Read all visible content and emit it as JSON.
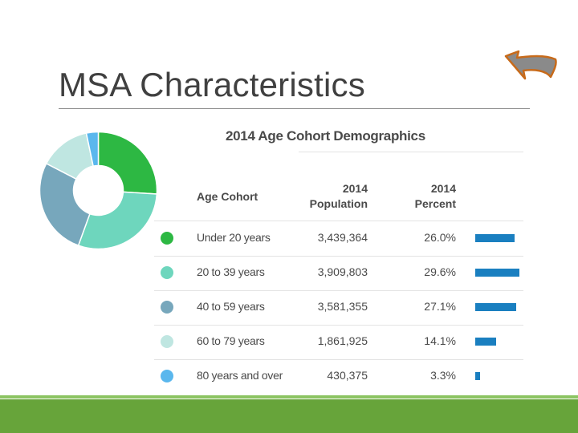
{
  "slide": {
    "title": "MSA Characteristics"
  },
  "colors": {
    "under20": "#2db843",
    "20to39": "#6ed6bd",
    "40to59": "#77a7bc",
    "60to79": "#bfe6e1",
    "80plus": "#5ab7ed",
    "bar": "#1a7fc0"
  },
  "chart_data": {
    "type": "table",
    "title": "2014 Age Cohort Demographics",
    "columns": [
      "Age Cohort",
      "2014 Population",
      "2014 Percent"
    ],
    "column_headers": [
      {
        "line1": "Age Cohort"
      },
      {
        "line1": "2014",
        "line2": "Population"
      },
      {
        "line1": "2014",
        "line2": "Percent"
      }
    ],
    "rows": [
      {
        "cohort": "Under 20 years",
        "population": "3,439,364",
        "percent": "26.0%",
        "value": 26.0,
        "color": "#2db843"
      },
      {
        "cohort": "20 to 39 years",
        "population": "3,909,803",
        "percent": "29.6%",
        "value": 29.6,
        "color": "#6ed6bd"
      },
      {
        "cohort": "40 to 59 years",
        "population": "3,581,355",
        "percent": "27.1%",
        "value": 27.1,
        "color": "#77a7bc"
      },
      {
        "cohort": "60 to 79 years",
        "population": "1,861,925",
        "percent": "14.1%",
        "value": 14.1,
        "color": "#bfe6e1"
      },
      {
        "cohort": "80 years and over",
        "population": "430,375",
        "percent": "3.3%",
        "value": 3.3,
        "color": "#5ab7ed"
      }
    ],
    "pie": {
      "type": "pie",
      "labels": [
        "Under 20 years",
        "20 to 39 years",
        "40 to 59 years",
        "60 to 79 years",
        "80 years and over"
      ],
      "values": [
        26.0,
        29.6,
        27.1,
        14.1,
        3.3
      ]
    }
  }
}
